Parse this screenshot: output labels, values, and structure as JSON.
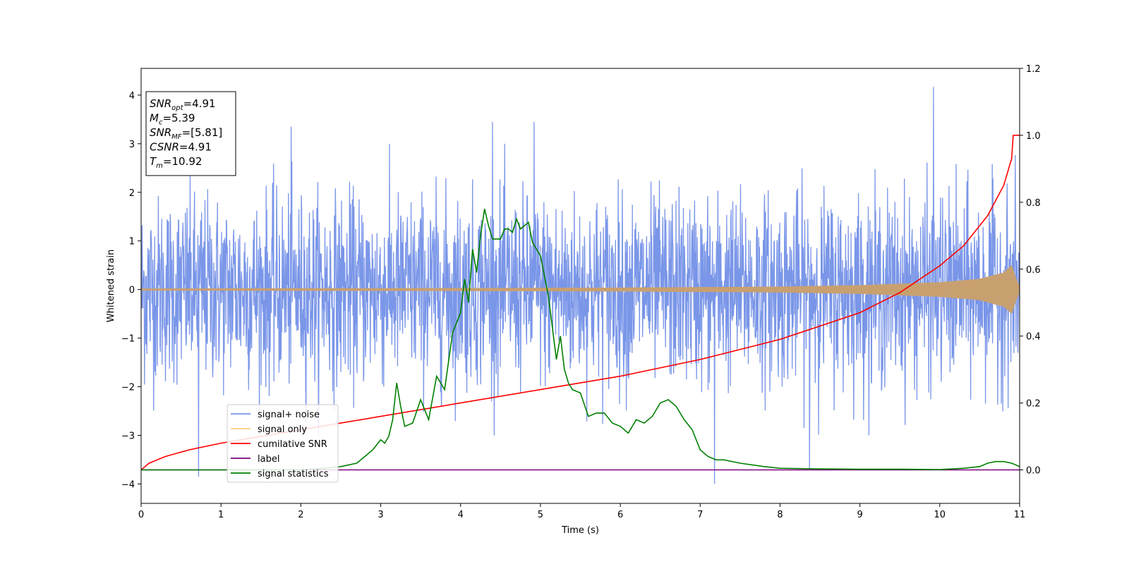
{
  "chart_data": {
    "type": "line",
    "xlabel": "Time (s)",
    "ylabel": "Whitened strain",
    "xlim": [
      0,
      11
    ],
    "ylim_left": [
      -4.4,
      4.55
    ],
    "ylim_right": [
      -0.1,
      1.2
    ],
    "x_ticks": [
      0,
      1,
      2,
      3,
      4,
      5,
      6,
      7,
      8,
      9,
      10,
      11
    ],
    "y_ticks_left": [
      -4,
      -3,
      -2,
      -1,
      0,
      1,
      2,
      3,
      4
    ],
    "y_ticks_right": [
      0.0,
      0.2,
      0.4,
      0.6,
      0.8,
      1.0,
      1.2
    ],
    "grid": false,
    "legend_position": "lower-left",
    "series": [
      {
        "name": "signal+ noise",
        "color": "#7a96e8",
        "axis": "left",
        "description_values": {
          "typical_range": [
            -2.6,
            2.6
          ],
          "peak_points": [
            [
              0.72,
              -3.85
            ],
            [
              1.88,
              3.35
            ],
            [
              4.4,
              3.45
            ],
            [
              4.92,
              3.45
            ],
            [
              7.18,
              -4.0
            ],
            [
              8.37,
              -3.7
            ],
            [
              9.92,
              4.17
            ]
          ]
        }
      },
      {
        "name": "signal only",
        "color": "#c8a070",
        "axis": "left",
        "envelope": [
          [
            0,
            0.02
          ],
          [
            2,
            0.025
          ],
          [
            4,
            0.03
          ],
          [
            6,
            0.04
          ],
          [
            8,
            0.06
          ],
          [
            9,
            0.09
          ],
          [
            10,
            0.15
          ],
          [
            10.5,
            0.22
          ],
          [
            10.8,
            0.35
          ],
          [
            10.9,
            0.5
          ],
          [
            10.95,
            0.25
          ],
          [
            11,
            0.05
          ]
        ]
      },
      {
        "name": "cumilative SNR",
        "color": "#ff0000",
        "axis": "right",
        "x": [
          0,
          0.1,
          0.3,
          0.6,
          1,
          2,
          3,
          4,
          5,
          6,
          7,
          8,
          8.5,
          9,
          9.5,
          10,
          10.3,
          10.6,
          10.8,
          10.9,
          10.92,
          11
        ],
        "y": [
          0.0,
          0.02,
          0.04,
          0.06,
          0.08,
          0.12,
          0.16,
          0.2,
          0.24,
          0.28,
          0.33,
          0.39,
          0.43,
          0.47,
          0.53,
          0.61,
          0.67,
          0.76,
          0.85,
          0.93,
          1.0,
          1.0
        ]
      },
      {
        "name": "label",
        "color": "#800080",
        "axis": "right",
        "x": [
          0,
          11
        ],
        "y": [
          0.0,
          0.0
        ]
      },
      {
        "name": "signal statistics",
        "color": "#008000",
        "axis": "right",
        "x": [
          0,
          0.5,
          1,
          1.5,
          2,
          2.3,
          2.5,
          2.7,
          2.8,
          2.9,
          3.0,
          3.05,
          3.1,
          3.15,
          3.2,
          3.25,
          3.3,
          3.4,
          3.5,
          3.6,
          3.7,
          3.8,
          3.9,
          4.0,
          4.05,
          4.1,
          4.15,
          4.2,
          4.25,
          4.3,
          4.35,
          4.4,
          4.5,
          4.55,
          4.6,
          4.65,
          4.7,
          4.75,
          4.8,
          4.85,
          4.9,
          5.0,
          5.1,
          5.2,
          5.25,
          5.3,
          5.35,
          5.4,
          5.5,
          5.6,
          5.7,
          5.8,
          5.9,
          6.0,
          6.1,
          6.2,
          6.3,
          6.4,
          6.5,
          6.6,
          6.7,
          6.8,
          6.9,
          7.0,
          7.1,
          7.2,
          7.3,
          7.5,
          7.8,
          8.0,
          8.5,
          9.0,
          9.5,
          10.0,
          10.3,
          10.5,
          10.6,
          10.7,
          10.8,
          10.9,
          11.0
        ],
        "y": [
          0.0,
          0.0,
          0.0,
          0.0,
          0.0,
          0.005,
          0.01,
          0.02,
          0.04,
          0.06,
          0.09,
          0.08,
          0.1,
          0.15,
          0.26,
          0.19,
          0.13,
          0.14,
          0.21,
          0.15,
          0.28,
          0.24,
          0.41,
          0.47,
          0.57,
          0.5,
          0.66,
          0.59,
          0.7,
          0.78,
          0.73,
          0.69,
          0.69,
          0.72,
          0.72,
          0.71,
          0.75,
          0.72,
          0.73,
          0.74,
          0.68,
          0.64,
          0.52,
          0.33,
          0.4,
          0.3,
          0.26,
          0.24,
          0.23,
          0.16,
          0.17,
          0.17,
          0.14,
          0.13,
          0.11,
          0.15,
          0.14,
          0.16,
          0.2,
          0.21,
          0.19,
          0.15,
          0.12,
          0.06,
          0.04,
          0.03,
          0.03,
          0.02,
          0.01,
          0.005,
          0.003,
          0.002,
          0.002,
          0.001,
          0.005,
          0.01,
          0.02,
          0.025,
          0.025,
          0.02,
          0.01
        ]
      }
    ],
    "annotation": {
      "lines": [
        {
          "base": "SNR",
          "sub": "opt",
          "value": "=4.91"
        },
        {
          "base": "M",
          "sub": "c",
          "value": "=5.39"
        },
        {
          "base": "SNR",
          "sub": "MF",
          "value": "=[5.81]"
        },
        {
          "base": "CSNR",
          "sub": "",
          "value": "=4.91"
        },
        {
          "base": "T",
          "sub": "m",
          "value": "=10.92"
        }
      ]
    }
  }
}
